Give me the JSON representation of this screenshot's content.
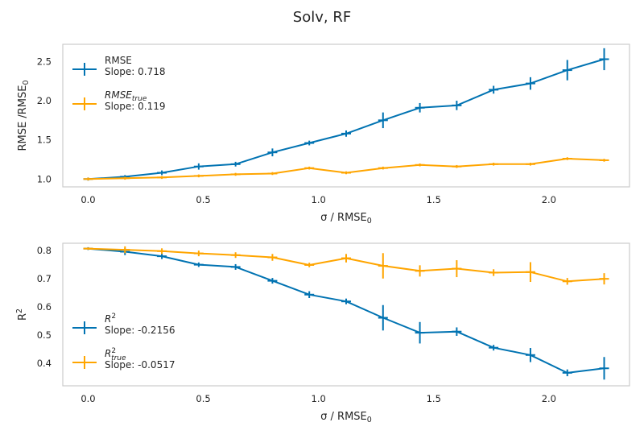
{
  "figure": {
    "title": "Solv, RF"
  },
  "colors": {
    "blue": "#0173b2",
    "orange": "#ffa500",
    "frame": "#cccccc",
    "text": "#262626"
  },
  "chart_data": [
    {
      "type": "line",
      "xlabel_main": "σ / RMSE",
      "xlabel_sub": "0",
      "ylabel_main": "RMSE /RMSE",
      "ylabel_sub": "0",
      "xlim": [
        -0.11,
        2.35
      ],
      "ylim": [
        0.9,
        2.72
      ],
      "xticks": [
        0.0,
        0.5,
        1.0,
        1.5,
        2.0
      ],
      "xtick_labels": [
        "0.0",
        "0.5",
        "1.0",
        "1.5",
        "2.0"
      ],
      "yticks": [
        1.0,
        1.5,
        2.0,
        2.5
      ],
      "ytick_labels": [
        "1.0",
        "1.5",
        "2.0",
        "2.5"
      ],
      "x": [
        0.0,
        0.16,
        0.32,
        0.48,
        0.64,
        0.8,
        0.96,
        1.12,
        1.28,
        1.44,
        1.6,
        1.76,
        1.92,
        2.08,
        2.24
      ],
      "legend_position": "upper left",
      "series": [
        {
          "name_main": "RMSE",
          "name_sub": "",
          "slope_label": "Slope: 0.718",
          "color": "#0173b2",
          "values": [
            1.0,
            1.03,
            1.08,
            1.16,
            1.19,
            1.34,
            1.46,
            1.58,
            1.75,
            1.91,
            1.94,
            2.14,
            2.22,
            2.39,
            2.53
          ],
          "errors": [
            0.02,
            0.02,
            0.03,
            0.04,
            0.03,
            0.05,
            0.03,
            0.04,
            0.1,
            0.06,
            0.06,
            0.05,
            0.08,
            0.13,
            0.14
          ]
        },
        {
          "name_main": "RMSE",
          "name_sub": "true",
          "slope_label": "Slope: 0.119",
          "color": "#ffa500",
          "values": [
            1.0,
            1.01,
            1.02,
            1.04,
            1.06,
            1.07,
            1.14,
            1.08,
            1.14,
            1.18,
            1.16,
            1.19,
            1.19,
            1.26,
            1.24
          ]
        }
      ]
    },
    {
      "type": "line",
      "xlabel_main": "σ / RMSE",
      "xlabel_sub": "0",
      "ylabel_main": "R",
      "ylabel_sup": "2",
      "xlim": [
        -0.11,
        2.35
      ],
      "ylim": [
        0.32,
        0.825
      ],
      "xticks": [
        0.0,
        0.5,
        1.0,
        1.5,
        2.0
      ],
      "xtick_labels": [
        "0.0",
        "0.5",
        "1.0",
        "1.5",
        "2.0"
      ],
      "yticks": [
        0.4,
        0.5,
        0.6,
        0.7,
        0.8
      ],
      "ytick_labels": [
        "0.4",
        "0.5",
        "0.6",
        "0.7",
        "0.8"
      ],
      "x": [
        0.0,
        0.16,
        0.32,
        0.48,
        0.64,
        0.8,
        0.96,
        1.12,
        1.28,
        1.44,
        1.6,
        1.76,
        1.92,
        2.08,
        2.24
      ],
      "legend_position": "lower left",
      "series": [
        {
          "name_main": "R",
          "name_sup": "2",
          "name_sub": "",
          "slope_label": "Slope: -0.2156",
          "color": "#0173b2",
          "values": [
            0.806,
            0.795,
            0.779,
            0.749,
            0.741,
            0.692,
            0.643,
            0.619,
            0.561,
            0.508,
            0.512,
            0.455,
            0.429,
            0.366,
            0.382
          ],
          "errors": [
            0.005,
            0.012,
            0.01,
            0.008,
            0.01,
            0.01,
            0.012,
            0.01,
            0.045,
            0.038,
            0.015,
            0.01,
            0.025,
            0.012,
            0.04
          ]
        },
        {
          "name_main": "R",
          "name_sup": "2",
          "name_sub": "true",
          "slope_label": "Slope: -0.0517",
          "color": "#ffa500",
          "values": [
            0.806,
            0.802,
            0.797,
            0.789,
            0.783,
            0.775,
            0.748,
            0.772,
            0.745,
            0.727,
            0.735,
            0.721,
            0.723,
            0.69,
            0.699
          ],
          "errors": [
            0.004,
            0.012,
            0.01,
            0.01,
            0.01,
            0.012,
            0.008,
            0.015,
            0.045,
            0.02,
            0.03,
            0.012,
            0.035,
            0.012,
            0.02
          ]
        }
      ]
    }
  ]
}
